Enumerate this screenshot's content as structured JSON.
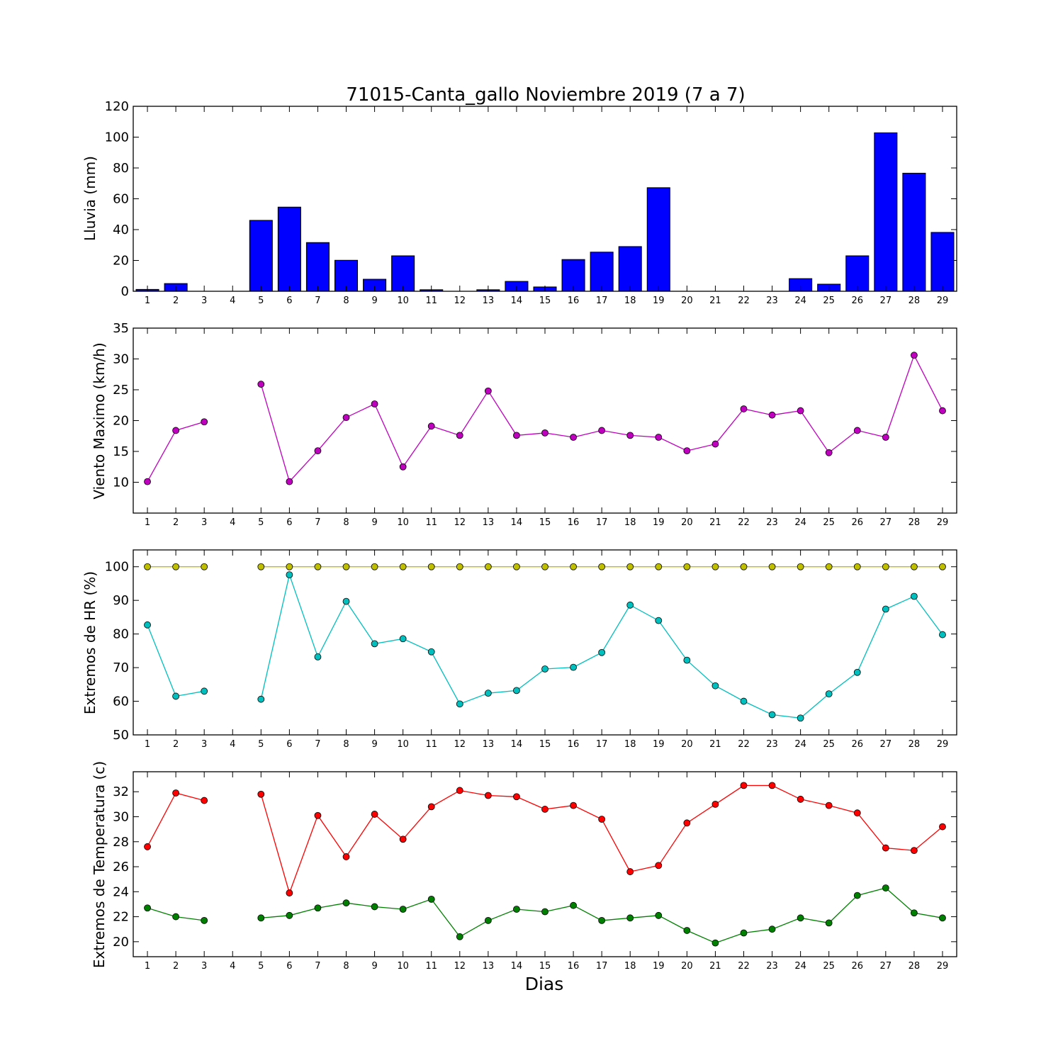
{
  "chart_data": [
    {
      "type": "bar",
      "title": "71015-Canta_gallo Noviembre 2019  (7 a 7)",
      "ylabel": "Lluvia (mm)",
      "xlabel": "",
      "x": [
        1,
        2,
        3,
        4,
        5,
        6,
        7,
        8,
        9,
        10,
        11,
        12,
        13,
        14,
        15,
        16,
        17,
        18,
        19,
        20,
        21,
        22,
        23,
        24,
        25,
        26,
        27,
        28,
        29
      ],
      "ylim": [
        0,
        120
      ],
      "yticks": [
        0,
        20,
        40,
        60,
        80,
        100,
        120
      ],
      "color": "#0000ff",
      "values": [
        1.2,
        5.0,
        0,
        0,
        46.0,
        54.6,
        31.6,
        20.1,
        7.8,
        23.0,
        1.0,
        0,
        1.0,
        6.4,
        2.8,
        20.6,
        25.4,
        29.0,
        67.2,
        0,
        0,
        0,
        0,
        8.2,
        4.6,
        23.0,
        102.8,
        76.6,
        38.2
      ]
    },
    {
      "type": "line",
      "title": "",
      "ylabel": "Viento Maximo (km/h)",
      "xlabel": "",
      "x": [
        1,
        2,
        3,
        4,
        5,
        6,
        7,
        8,
        9,
        10,
        11,
        12,
        13,
        14,
        15,
        16,
        17,
        18,
        19,
        20,
        21,
        22,
        23,
        24,
        25,
        26,
        27,
        28,
        29
      ],
      "ylim": [
        5,
        35
      ],
      "yticks": [
        10,
        15,
        20,
        25,
        30,
        35
      ],
      "series": [
        {
          "color": "#bf00bf",
          "values": [
            10.1,
            18.4,
            19.8,
            null,
            25.9,
            10.1,
            15.1,
            20.5,
            22.7,
            12.5,
            19.1,
            17.6,
            24.8,
            17.6,
            18.0,
            17.3,
            18.4,
            17.6,
            17.3,
            15.1,
            16.2,
            21.9,
            20.9,
            21.6,
            14.8,
            18.4,
            17.3,
            30.6,
            21.6
          ]
        }
      ]
    },
    {
      "type": "line",
      "title": "",
      "ylabel": "Extremos de HR (%)",
      "xlabel": "",
      "x": [
        1,
        2,
        3,
        4,
        5,
        6,
        7,
        8,
        9,
        10,
        11,
        12,
        13,
        14,
        15,
        16,
        17,
        18,
        19,
        20,
        21,
        22,
        23,
        24,
        25,
        26,
        27,
        28,
        29
      ],
      "ylim": [
        50,
        105
      ],
      "yticks": [
        50,
        60,
        70,
        80,
        90,
        100
      ],
      "series": [
        {
          "color": "#bfbf00",
          "values": [
            100,
            100,
            100,
            null,
            100,
            100,
            100,
            100,
            100,
            100,
            100,
            100,
            100,
            100,
            100,
            100,
            100,
            100,
            100,
            100,
            100,
            100,
            100,
            100,
            100,
            100,
            100,
            100,
            100
          ]
        },
        {
          "color": "#00bfbf",
          "values": [
            82.7,
            61.5,
            63.0,
            null,
            60.6,
            97.6,
            73.2,
            89.7,
            77.1,
            78.6,
            74.7,
            59.2,
            62.4,
            63.2,
            69.6,
            70.1,
            74.5,
            88.6,
            84.0,
            72.2,
            64.6,
            60.0,
            56.0,
            55.0,
            62.2,
            68.6,
            87.4,
            91.2,
            79.8
          ]
        }
      ]
    },
    {
      "type": "line",
      "title": "",
      "ylabel": "Extremos de Temperatura (c)",
      "xlabel": "Dias",
      "x": [
        1,
        2,
        3,
        4,
        5,
        6,
        7,
        8,
        9,
        10,
        11,
        12,
        13,
        14,
        15,
        16,
        17,
        18,
        19,
        20,
        21,
        22,
        23,
        24,
        25,
        26,
        27,
        28,
        29
      ],
      "ylim": [
        18.8,
        33.6
      ],
      "yticks": [
        20,
        22,
        24,
        26,
        28,
        30,
        32
      ],
      "series": [
        {
          "color": "#ff0000",
          "values": [
            27.6,
            31.9,
            31.3,
            null,
            31.8,
            23.9,
            30.1,
            26.8,
            30.2,
            28.2,
            30.8,
            32.1,
            31.7,
            31.6,
            30.6,
            30.9,
            29.8,
            25.6,
            26.1,
            29.5,
            31.0,
            32.5,
            32.5,
            31.4,
            30.9,
            30.3,
            27.5,
            27.3,
            29.2
          ]
        },
        {
          "color": "#008000",
          "values": [
            22.7,
            22.0,
            21.7,
            null,
            21.9,
            22.1,
            22.7,
            23.1,
            22.8,
            22.6,
            23.4,
            20.4,
            21.7,
            22.6,
            22.4,
            22.9,
            21.7,
            21.9,
            22.1,
            20.9,
            19.9,
            20.7,
            21.0,
            21.9,
            21.5,
            23.7,
            24.3,
            22.3,
            21.9
          ]
        }
      ]
    }
  ]
}
